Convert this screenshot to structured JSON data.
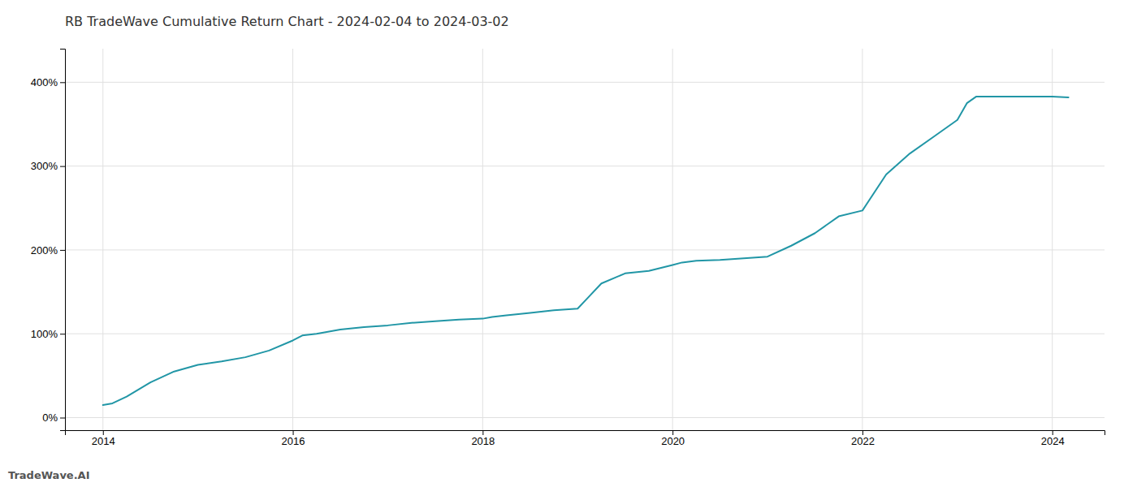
{
  "chart_data": {
    "type": "line",
    "title": "RB TradeWave Cumulative Return Chart - 2024-02-04 to 2024-03-02",
    "annotations": [
      "TradeWave.AI"
    ],
    "x": [
      2014.0,
      2014.1,
      2014.25,
      2014.5,
      2014.75,
      2015.0,
      2015.25,
      2015.5,
      2015.75,
      2016.0,
      2016.1,
      2016.25,
      2016.5,
      2016.75,
      2017.0,
      2017.25,
      2017.5,
      2017.75,
      2018.0,
      2018.1,
      2018.25,
      2018.5,
      2018.75,
      2019.0,
      2019.1,
      2019.25,
      2019.5,
      2019.75,
      2020.0,
      2020.1,
      2020.25,
      2020.5,
      2020.75,
      2021.0,
      2021.25,
      2021.5,
      2021.75,
      2022.0,
      2022.25,
      2022.5,
      2022.75,
      2023.0,
      2023.1,
      2023.2,
      2024.0,
      2024.17
    ],
    "values": [
      15,
      17,
      25,
      42,
      55,
      63,
      67,
      72,
      80,
      92,
      98,
      100,
      105,
      108,
      110,
      113,
      115,
      117,
      118,
      120,
      122,
      125,
      128,
      130,
      142,
      160,
      172,
      175,
      182,
      185,
      187,
      188,
      190,
      192,
      205,
      220,
      240,
      247,
      290,
      315,
      335,
      355,
      375,
      383,
      383,
      382
    ],
    "color": "#2196a6",
    "xlim": [
      2013.6,
      2024.55
    ],
    "ylim": [
      -15,
      440
    ],
    "xticks": [
      2014,
      2016,
      2018,
      2020,
      2022,
      2024
    ],
    "yticks": [
      {
        "value": 0,
        "label": "0%"
      },
      {
        "value": 100,
        "label": "100%"
      },
      {
        "value": 200,
        "label": "200%"
      },
      {
        "value": 300,
        "label": "300%"
      },
      {
        "value": 400,
        "label": "400%"
      }
    ],
    "grid": true
  }
}
